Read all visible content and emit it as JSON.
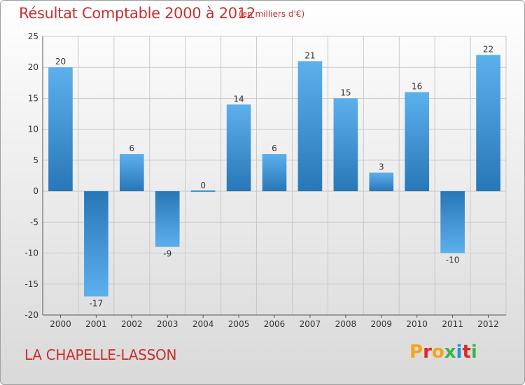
{
  "header": {
    "title": "Résultat Comptable 2000 à 2012",
    "subtitle": "(en milliers d'€)"
  },
  "footer": {
    "commune": "LA CHAPELLE-LASSON",
    "logo_text": "Proxiti",
    "logo_colors": [
      "#f7a21b",
      "#e2262b",
      "#f7a21b",
      "#3ab54a",
      "#2a8fd6",
      "#e2262b",
      "#3ab54a"
    ]
  },
  "colors": {
    "bar_light": "#5aaeea",
    "bar_dark": "#2a7bbd",
    "grid": "#c8c8c8",
    "title": "#cc2e2e"
  },
  "chart_data": {
    "type": "bar",
    "title": "Résultat Comptable 2000 à 2012",
    "subtitle": "(en milliers d'€)",
    "categories": [
      "2000",
      "2001",
      "2002",
      "2003",
      "2004",
      "2005",
      "2006",
      "2007",
      "2008",
      "2009",
      "2010",
      "2011",
      "2012"
    ],
    "values": [
      20,
      -17,
      6,
      -9,
      0,
      14,
      6,
      21,
      15,
      3,
      16,
      -10,
      22
    ],
    "ylim": [
      -20,
      25
    ],
    "yticks": [
      25,
      20,
      15,
      10,
      5,
      0,
      -5,
      -10,
      -15,
      -20
    ],
    "grid": true
  }
}
